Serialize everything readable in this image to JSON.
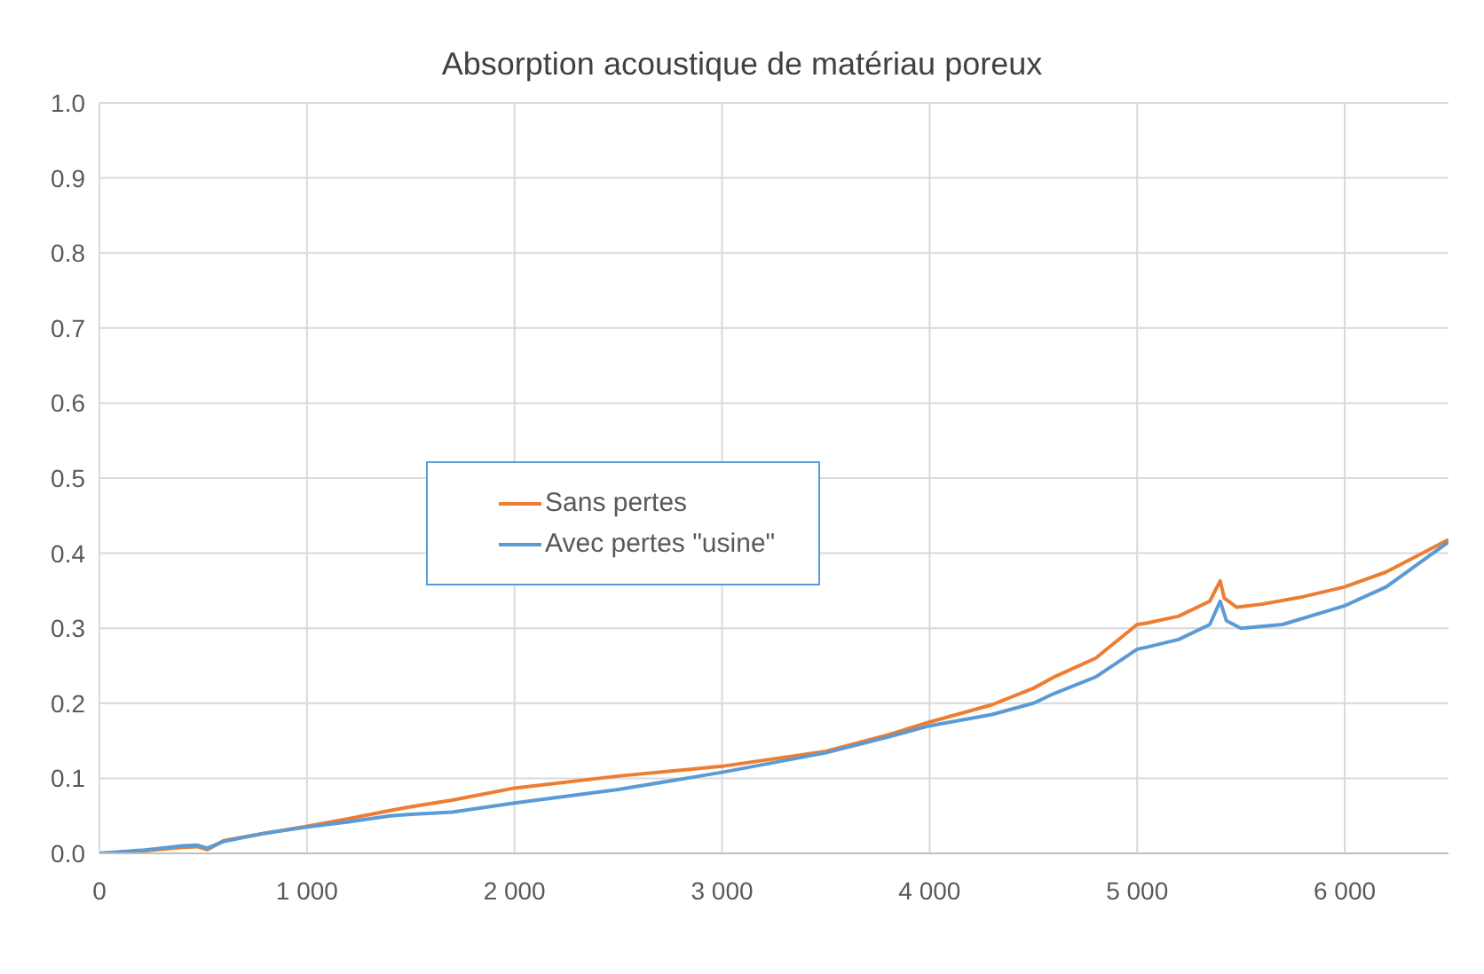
{
  "chart_data": {
    "type": "line",
    "title": "Absorption acoustique de matériau poreux",
    "xlim": [
      0,
      6500
    ],
    "xticks": [
      0,
      {
        "value": 1000,
        "label": "1 000"
      },
      {
        "value": 2000,
        "label": "2 000"
      },
      {
        "value": 3000,
        "label": "3 000"
      },
      {
        "value": 4000,
        "label": "4 000"
      },
      {
        "value": 5000,
        "label": "5 000"
      },
      {
        "value": 6000,
        "label": "6 000"
      }
    ],
    "ylim": [
      0,
      1
    ],
    "yticks": [
      {
        "value": 0,
        "label": "0.0"
      },
      {
        "value": 0.1,
        "label": "0.1"
      },
      {
        "value": 0.2,
        "label": "0.2"
      },
      {
        "value": 0.3,
        "label": "0.3"
      },
      {
        "value": 0.4,
        "label": "0.4"
      },
      {
        "value": 0.5,
        "label": "0.5"
      },
      {
        "value": 0.6,
        "label": "0.6"
      },
      {
        "value": 0.7,
        "label": "0.7"
      },
      {
        "value": 0.8,
        "label": "0.8"
      },
      {
        "value": 0.9,
        "label": "0.9"
      },
      {
        "value": 1,
        "label": "1.0"
      }
    ],
    "grid": true,
    "legend": "center",
    "marker": "none",
    "line_style": "solid",
    "series": [
      {
        "name": "Sans pertes",
        "color": "#ed7d31",
        "x": [
          0,
          200,
          400,
          470,
          520,
          600,
          800,
          1000,
          1200,
          1400,
          1500,
          1700,
          2000,
          2500,
          3000,
          3500,
          3800,
          4000,
          4300,
          4500,
          4600,
          4800,
          5000,
          5050,
          5200,
          5350,
          5400,
          5420,
          5480,
          5600,
          5800,
          6000,
          6200,
          6500
        ],
        "values": [
          0,
          0.003,
          0.008,
          0.009,
          0.005,
          0.017,
          0.027,
          0.036,
          0.046,
          0.057,
          0.062,
          0.071,
          0.087,
          0.103,
          0.116,
          0.136,
          0.158,
          0.175,
          0.198,
          0.22,
          0.235,
          0.26,
          0.305,
          0.307,
          0.316,
          0.336,
          0.363,
          0.34,
          0.328,
          0.332,
          0.342,
          0.355,
          0.375,
          0.418
        ]
      },
      {
        "name": "Avec pertes \"usine\"",
        "color": "#5b9bd5",
        "x": [
          0,
          200,
          400,
          470,
          520,
          600,
          800,
          1000,
          1200,
          1400,
          1500,
          1700,
          2000,
          2500,
          3000,
          3500,
          3800,
          4000,
          4300,
          4500,
          4600,
          4800,
          5000,
          5050,
          5200,
          5350,
          5400,
          5430,
          5500,
          5700,
          6000,
          6200,
          6500
        ],
        "values": [
          0,
          0.004,
          0.01,
          0.011,
          0.007,
          0.016,
          0.027,
          0.035,
          0.042,
          0.05,
          0.052,
          0.055,
          0.067,
          0.085,
          0.108,
          0.134,
          0.155,
          0.17,
          0.185,
          0.2,
          0.213,
          0.235,
          0.272,
          0.275,
          0.285,
          0.305,
          0.336,
          0.31,
          0.3,
          0.305,
          0.33,
          0.355,
          0.415
        ]
      }
    ]
  }
}
